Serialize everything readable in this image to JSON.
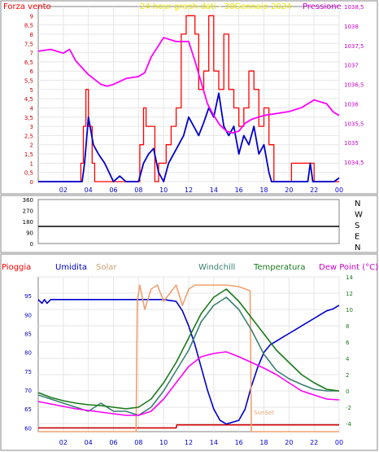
{
  "chart_data": [
    {
      "type": "line",
      "title": "24 hour graph dati - 30Gennaio 2024",
      "left_label": "Forza vento",
      "right_label": "Pressione",
      "x_ticks": [
        "02",
        "04",
        "06",
        "08",
        "10",
        "12",
        "14",
        "16",
        "18",
        "20",
        "22",
        "00"
      ],
      "ylim_left": [
        0,
        9.5
      ],
      "y_ticks_left": [
        "0",
        "0,5",
        "1",
        "1,5",
        "2",
        "2,5",
        "3",
        "3,5",
        "4",
        "4,5",
        "5",
        "5,5",
        "6",
        "6,5",
        "7",
        "7,5",
        "8",
        "8,5",
        "9"
      ],
      "ylim_right": [
        1034,
        1038.5
      ],
      "y_ticks_right": [
        "1034,5",
        "1035",
        "1035,5",
        "1036",
        "1036,5",
        "1037",
        "1037,5",
        "1038",
        "1038,5"
      ],
      "series": [
        {
          "color": "#ff0000",
          "x": [
            0,
            3.3,
            3.4,
            3.6,
            3.8,
            4.0,
            4.3,
            4.5,
            7.9,
            8.1,
            8.4,
            8.6,
            9.3,
            9.6,
            10.2,
            10.6,
            11.0,
            11.4,
            11.8,
            12.1,
            12.5,
            12.8,
            13.2,
            13.6,
            14.0,
            14.4,
            14.8,
            15.2,
            15.6,
            16.0,
            16.4,
            16.8,
            17.2,
            17.6,
            18.0,
            18.4,
            18.8,
            20.2,
            22.0,
            24
          ],
          "values": [
            0,
            0,
            1,
            3,
            5,
            3,
            1,
            0,
            0,
            2,
            4,
            3,
            0,
            1,
            2,
            3,
            4,
            8,
            9,
            9,
            8,
            5,
            6,
            9,
            6,
            5,
            8,
            5,
            4,
            3,
            4,
            6,
            5,
            3,
            4,
            2,
            0,
            1,
            0,
            0
          ]
        },
        {
          "color": "#0000cc",
          "x": [
            0,
            3.5,
            3.7,
            4.0,
            4.4,
            4.8,
            5.3,
            6.0,
            6.5,
            7.0,
            8.0,
            8.4,
            8.8,
            9.2,
            9.6,
            10.0,
            10.4,
            10.8,
            11.2,
            11.6,
            12.0,
            12.4,
            12.8,
            13.2,
            13.6,
            14.0,
            14.4,
            14.8,
            15.2,
            15.6,
            16.0,
            16.4,
            16.8,
            17.2,
            17.6,
            18.0,
            18.4,
            18.6,
            21.5,
            21.7,
            21.9,
            23.6,
            24
          ],
          "values": [
            0,
            0,
            1,
            3.5,
            2,
            1.5,
            1,
            0,
            0.3,
            0,
            0,
            1,
            1.5,
            1.8,
            0.5,
            0,
            1,
            1.5,
            2,
            2.5,
            3.5,
            3,
            2.5,
            3.2,
            4,
            3.5,
            4.8,
            3,
            2.5,
            3,
            1.5,
            2.5,
            2,
            3,
            1.5,
            2,
            0.5,
            0,
            0,
            1,
            0,
            0,
            0.2
          ]
        },
        {
          "color": "#ff00ff",
          "axis": "right",
          "x": [
            0,
            1,
            2,
            2.5,
            3,
            4,
            5,
            5.5,
            6,
            7,
            8,
            8.5,
            9,
            10,
            11,
            12,
            12.5,
            13,
            13.5,
            14,
            14.5,
            15,
            15.5,
            16,
            16.5,
            17,
            18,
            19,
            20,
            21,
            22,
            23,
            23.5,
            24
          ],
          "values": [
            1037.35,
            1037.4,
            1037.3,
            1037.4,
            1037.1,
            1036.75,
            1036.5,
            1036.45,
            1036.5,
            1036.65,
            1036.7,
            1036.8,
            1037.2,
            1037.7,
            1037.6,
            1037.6,
            1037.1,
            1036.55,
            1036.0,
            1035.7,
            1035.45,
            1035.3,
            1035.25,
            1035.3,
            1035.5,
            1035.6,
            1035.7,
            1035.75,
            1035.8,
            1035.9,
            1036.1,
            1036.0,
            1035.8,
            1035.7
          ]
        }
      ]
    },
    {
      "type": "line",
      "title": "",
      "y_ticks": [
        "0",
        "90",
        "180",
        "270",
        "360"
      ],
      "ylim": [
        0,
        360
      ],
      "direction_labels": [
        "N",
        "W",
        "S",
        "E",
        "N"
      ],
      "series": [
        {
          "color": "#000000",
          "x": [
            0,
            24
          ],
          "values": [
            140,
            140
          ]
        }
      ]
    },
    {
      "type": "line",
      "title": "",
      "legend": [
        "Pioggia",
        "Umidita",
        "Solar",
        "Windchill",
        "Temperatura",
        "Dew Point (°C)"
      ],
      "x_ticks": [
        "02",
        "04",
        "06",
        "08",
        "10",
        "12",
        "14",
        "16",
        "18",
        "20",
        "22",
        "00"
      ],
      "ylim_left": [
        59,
        100
      ],
      "y_ticks_left": [
        "60",
        "65",
        "70",
        "75",
        "80",
        "85",
        "90",
        "95"
      ],
      "y_ticks_right": [
        "-4",
        "-2",
        "0",
        "2",
        "4",
        "6",
        "8",
        "10",
        "12",
        "14"
      ],
      "ylim_right": [
        -5,
        14
      ],
      "annotation": "SunSet",
      "series": [
        {
          "name": "Pioggia",
          "color": "#cc0000",
          "axis": "left",
          "x": [
            0,
            11,
            11.05,
            24
          ],
          "values": [
            60,
            60,
            60.8,
            60.8
          ]
        },
        {
          "name": "Umidita",
          "color": "#0000cc",
          "axis": "left",
          "x": [
            0,
            0.3,
            0.5,
            0.7,
            1,
            2,
            4,
            6,
            8,
            10,
            11,
            11.5,
            12,
            12.5,
            13,
            13.5,
            14,
            14.5,
            15,
            15.5,
            16,
            16.5,
            17,
            17.5,
            18,
            18.5,
            19,
            19.5,
            20,
            20.5,
            21,
            21.5,
            22,
            22.5,
            23,
            23.5,
            24
          ],
          "values": [
            94,
            93,
            94,
            93,
            94,
            94,
            94,
            94,
            94,
            94,
            93.5,
            91,
            87,
            82,
            76,
            70,
            65,
            62,
            61,
            61.5,
            62,
            65,
            71,
            76,
            80,
            82,
            83,
            84,
            85,
            86,
            87,
            88,
            89,
            90,
            91,
            91.5,
            92.5
          ]
        },
        {
          "name": "Solar",
          "color": "#f0a070",
          "axis": "right",
          "x": [
            0,
            7.8,
            7.9,
            8.1,
            8.5,
            9.0,
            9.5,
            10.0,
            10.5,
            11.0,
            11.5,
            12.0,
            12.5,
            13,
            14,
            15,
            16,
            16.9,
            17,
            17.1,
            24
          ],
          "values": [
            -5,
            -5,
            11,
            13,
            10,
            12.5,
            13,
            11,
            12,
            13,
            10.5,
            12.5,
            13,
            13,
            13,
            13,
            12.8,
            12.3,
            -5,
            -5,
            -5
          ]
        },
        {
          "name": "Windchill",
          "color": "#3a8070",
          "axis": "right",
          "x": [
            0,
            2,
            4,
            5,
            6,
            7,
            8,
            9,
            10,
            11,
            12,
            13,
            14,
            15,
            16,
            17,
            18,
            19,
            20,
            21,
            22,
            23,
            24
          ],
          "values": [
            -0.5,
            -1.5,
            -2.5,
            -1.5,
            -2.5,
            -2.5,
            -3,
            -2,
            0,
            2.5,
            5,
            8.5,
            10.5,
            11.5,
            10,
            7.5,
            4.5,
            2.5,
            1.5,
            0.8,
            0.2,
            0,
            0
          ]
        },
        {
          "name": "Temperatura",
          "color": "#1a7a1a",
          "axis": "right",
          "x": [
            0,
            1,
            2,
            3,
            4,
            5,
            6,
            7,
            8,
            9,
            10,
            11,
            12,
            13,
            14,
            15,
            16,
            17,
            18,
            19,
            20,
            21,
            22,
            23,
            24
          ],
          "values": [
            -0.2,
            -0.8,
            -1.2,
            -1.5,
            -1.7,
            -1.8,
            -2,
            -2.2,
            -2,
            -1,
            1,
            3.5,
            6.5,
            9.5,
            11.5,
            12.5,
            11,
            9,
            7,
            5,
            3.5,
            2,
            1,
            0.2,
            0
          ]
        },
        {
          "name": "Dew Point (°C)",
          "color": "#ff00ff",
          "axis": "right",
          "x": [
            0,
            1,
            2,
            3,
            4,
            5,
            6,
            7,
            8,
            9,
            10,
            11,
            12,
            13,
            14,
            15,
            16,
            17,
            18,
            19,
            20,
            21,
            22,
            23,
            24
          ],
          "values": [
            -1.3,
            -1.6,
            -1.9,
            -2.2,
            -2.4,
            -2.6,
            -2.8,
            -3,
            -3,
            -2.5,
            -1,
            1,
            3,
            4.2,
            4.6,
            4.8,
            4.2,
            3.5,
            2.8,
            2,
            1,
            0,
            -0.5,
            -1,
            -1.1
          ]
        }
      ]
    }
  ]
}
